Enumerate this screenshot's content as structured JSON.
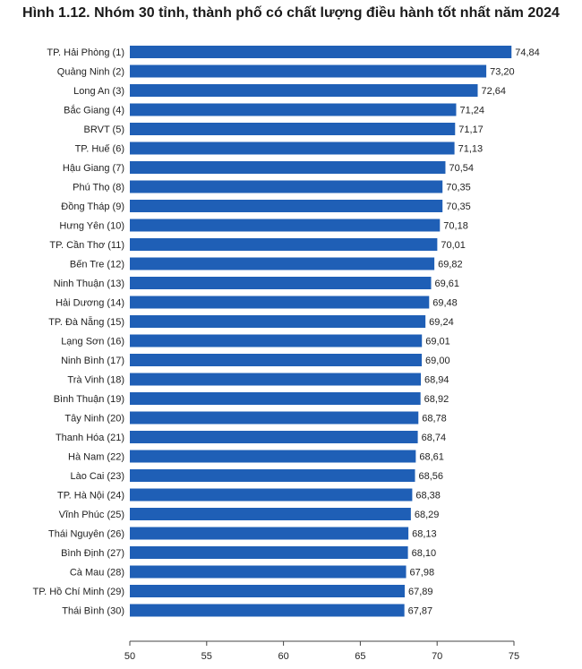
{
  "chart_data": {
    "type": "bar",
    "orientation": "horizontal",
    "title": "Hình 1.12. Nhóm 30 tỉnh, thành phố có chất lượng điều hành tốt nhất năm 2024",
    "categories": [
      "TP. Hải Phòng (1)",
      "Quảng Ninh (2)",
      "Long An (3)",
      "Bắc Giang (4)",
      "BRVT (5)",
      "TP. Huế (6)",
      "Hậu Giang (7)",
      "Phú Thọ (8)",
      "Đồng Tháp (9)",
      "Hưng Yên (10)",
      "TP. Cần Thơ (11)",
      "Bến Tre (12)",
      "Ninh Thuận (13)",
      "Hải Dương (14)",
      "TP. Đà Nẵng (15)",
      "Lạng Sơn (16)",
      "Ninh Bình (17)",
      "Trà Vinh (18)",
      "Bình Thuận (19)",
      "Tây Ninh (20)",
      "Thanh Hóa (21)",
      "Hà Nam (22)",
      "Lào Cai (23)",
      "TP. Hà Nội (24)",
      "Vĩnh Phúc (25)",
      "Thái Nguyên (26)",
      "Bình Định (27)",
      "Cà Mau (28)",
      "TP. Hồ Chí Minh (29)",
      "Thái Bình (30)"
    ],
    "values": [
      74.84,
      73.2,
      72.64,
      71.24,
      71.17,
      71.13,
      70.54,
      70.35,
      70.35,
      70.18,
      70.01,
      69.82,
      69.61,
      69.48,
      69.24,
      69.01,
      69.0,
      68.94,
      68.92,
      68.78,
      68.74,
      68.61,
      68.56,
      68.38,
      68.29,
      68.13,
      68.1,
      67.98,
      67.89,
      67.87
    ],
    "value_labels": [
      "74,84",
      "73,20",
      "72,64",
      "71,24",
      "71,17",
      "71,13",
      "70,54",
      "70,35",
      "70,35",
      "70,18",
      "70,01",
      "69,82",
      "69,61",
      "69,48",
      "69,24",
      "69,01",
      "69,00",
      "68,94",
      "68,92",
      "68,78",
      "68,74",
      "68,61",
      "68,56",
      "68,38",
      "68,29",
      "68,13",
      "68,10",
      "67,98",
      "67,89",
      "67,87"
    ],
    "xlim": [
      50,
      75
    ],
    "xticks": [
      "50",
      "55",
      "60",
      "65",
      "70",
      "75"
    ],
    "grid": false,
    "colors": {
      "bar": "#1f5fb6",
      "axis": "#444444"
    }
  }
}
